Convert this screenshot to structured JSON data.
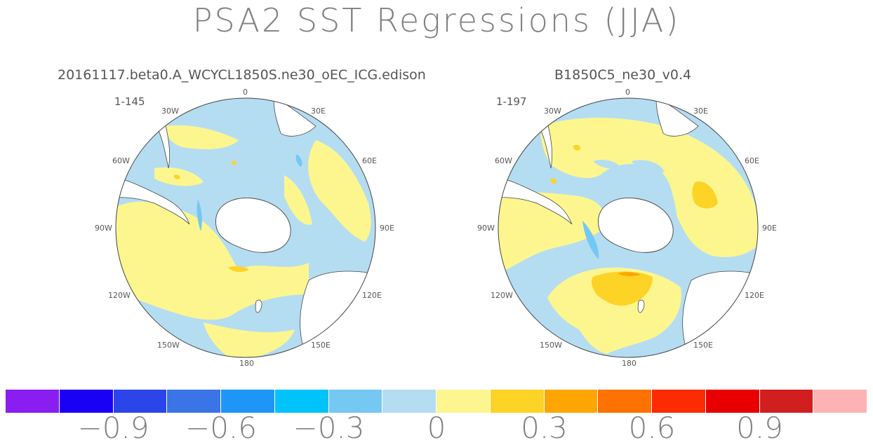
{
  "title": "PSA2 SST Regressions (JJA)",
  "panels": [
    {
      "subtitle": "20161117.beta0.A_WCYCL1850S.ne30_oEC_ICG.edison",
      "count": "1-145",
      "lon_labels": [
        "0",
        "30E",
        "60E",
        "90E",
        "120E",
        "150E",
        "180",
        "150W",
        "120W",
        "90W",
        "60W",
        "30W"
      ]
    },
    {
      "subtitle": "B1850C5_ne30_v0.4",
      "count": "1-197",
      "lon_labels": [
        "0",
        "30E",
        "60E",
        "90E",
        "120E",
        "150E",
        "180",
        "150W",
        "120W",
        "90W",
        "60W",
        "30W"
      ]
    }
  ],
  "colorbar": {
    "colors": [
      "#8a1df0",
      "#1a00f5",
      "#2c45e8",
      "#3a74e6",
      "#1e96f8",
      "#00c3f9",
      "#74c8f2",
      "#b4ddf2",
      "#fdf68f",
      "#fdd326",
      "#fda603",
      "#fd7200",
      "#fd2b00",
      "#e80000",
      "#d11e1e",
      "#fdb3b3"
    ],
    "labels": [
      "−0.9",
      "−0.6",
      "−0.3",
      "0",
      "0.3",
      "0.6",
      "0.9"
    ],
    "label_values": [
      -0.9,
      -0.6,
      -0.3,
      0,
      0.3,
      0.6,
      0.9
    ],
    "min": -1.2,
    "max": 1.2
  }
}
